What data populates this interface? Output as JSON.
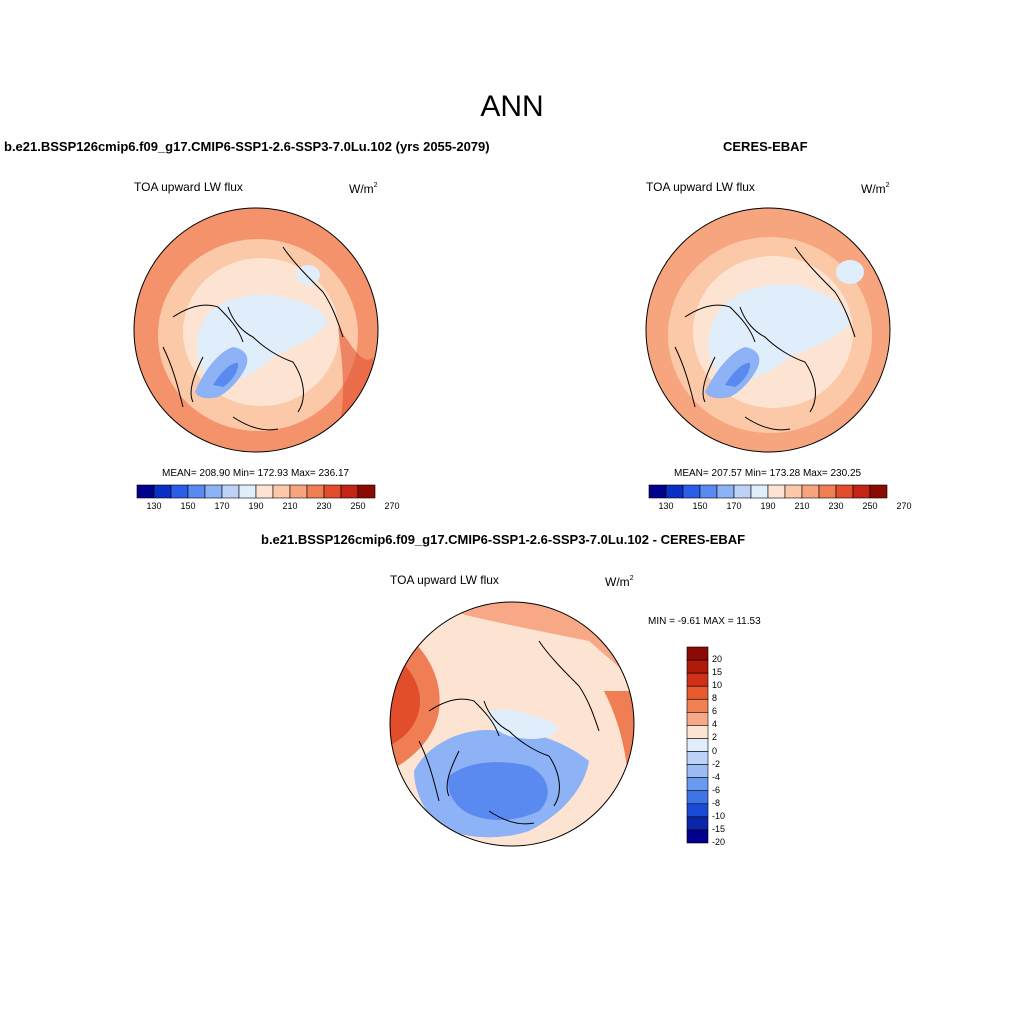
{
  "figure": {
    "main_title": "ANN"
  },
  "panels": [
    {
      "title": "b.e21.BSSP126cmip6.f09_g17.CMIP6-SSP1-2.6-SSP3-7.0Lu.102 (yrs 2055-2079)",
      "variable": "TOA upward LW flux",
      "unit_base": "W/m",
      "unit_exp": "2",
      "stats": "MEAN= 208.90  Min= 172.93  Max= 236.17",
      "colorbar_ticks": [
        "130",
        "150",
        "170",
        "190",
        "210",
        "230",
        "250",
        "270"
      ]
    },
    {
      "title": "CERES-EBAF",
      "variable": "TOA upward LW flux",
      "unit_base": "W/m",
      "unit_exp": "2",
      "stats": "MEAN= 207.57  Min= 173.28  Max= 230.25",
      "colorbar_ticks": [
        "130",
        "150",
        "170",
        "190",
        "210",
        "230",
        "250",
        "270"
      ]
    },
    {
      "title": "b.e21.BSSP126cmip6.f09_g17.CMIP6-SSP1-2.6-SSP3-7.0Lu.102 - CERES-EBAF",
      "variable": "TOA upward LW flux",
      "unit_base": "W/m",
      "unit_exp": "2",
      "stats": "MIN =  -9.61 MAX =  11.53",
      "colorbar_ticks": [
        "20",
        "15",
        "10",
        "8",
        "6",
        "4",
        "2",
        "0",
        "-2",
        "-4",
        "-6",
        "-8",
        "-10",
        "-15",
        "-20"
      ]
    }
  ],
  "colors": {
    "abs_scale": [
      "#00008c",
      "#0a2fc4",
      "#2a5ee8",
      "#5a8af0",
      "#8db2f5",
      "#bcd3f7",
      "#e0edfb",
      "#fde4d2",
      "#fbc8a8",
      "#f7a57e",
      "#f07e55",
      "#e24d2c",
      "#c42414",
      "#8c0a04"
    ],
    "diff_scale": [
      "#8c0a04",
      "#b01a0a",
      "#d03018",
      "#e85a30",
      "#f38055",
      "#f7a886",
      "#fde4d2",
      "#e0edfb",
      "#bcd3f7",
      "#9bbcf5",
      "#6a99f0",
      "#3f74e8",
      "#1a4bd6",
      "#0a25a8",
      "#00008c"
    ]
  }
}
